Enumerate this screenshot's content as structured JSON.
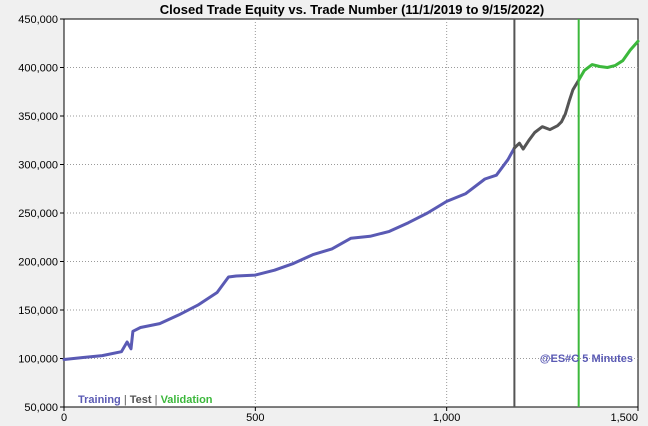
{
  "chart_data": {
    "type": "line",
    "title": "Closed Trade Equity vs. Trade Number (11/1/2019 to 9/15/2022)",
    "xlabel": "",
    "ylabel": "",
    "xlim": [
      0,
      1500
    ],
    "ylim": [
      50000,
      450000
    ],
    "x_ticks": [
      0,
      500,
      1000,
      1500
    ],
    "x_tick_labels": [
      "0",
      "500",
      "1,000",
      "1,500"
    ],
    "y_ticks": [
      50000,
      100000,
      150000,
      200000,
      250000,
      300000,
      350000,
      400000,
      450000
    ],
    "y_tick_labels": [
      "50,000",
      "100,000",
      "150,000",
      "200,000",
      "250,000",
      "300,000",
      "350,000",
      "400,000",
      "450,000"
    ],
    "grid": true,
    "legend_position": "bottom-left",
    "annotation": "@ES#C 5 Minutes",
    "boundaries": [
      {
        "name": "Test",
        "x": 1177,
        "color": "#555555"
      },
      {
        "name": "Validation",
        "x": 1345,
        "color": "#3cb83c"
      }
    ],
    "series": [
      {
        "name": "Training",
        "color": "#5a5ab4",
        "x": [
          0,
          50,
          100,
          150,
          165,
          175,
          180,
          200,
          250,
          300,
          350,
          400,
          430,
          450,
          500,
          550,
          600,
          650,
          700,
          750,
          800,
          850,
          900,
          950,
          1000,
          1050,
          1100,
          1130,
          1160,
          1177
        ],
        "y": [
          99000,
          101000,
          103000,
          107000,
          117000,
          110000,
          128000,
          132000,
          136000,
          145000,
          155000,
          168000,
          184000,
          185000,
          186000,
          191000,
          198000,
          207000,
          213000,
          224000,
          226000,
          231000,
          240000,
          250000,
          262000,
          270000,
          285000,
          289000,
          305000,
          317000
        ]
      },
      {
        "name": "Test",
        "color": "#555555",
        "x": [
          1177,
          1190,
          1200,
          1215,
          1230,
          1250,
          1270,
          1290,
          1300,
          1310,
          1320,
          1330,
          1345
        ],
        "y": [
          317000,
          322000,
          316000,
          325000,
          333000,
          339000,
          336000,
          340000,
          344000,
          352000,
          365000,
          377000,
          387000
        ]
      },
      {
        "name": "Validation",
        "color": "#3cb83c",
        "x": [
          1345,
          1360,
          1380,
          1400,
          1420,
          1440,
          1460,
          1480,
          1500
        ],
        "y": [
          387000,
          397000,
          403000,
          401000,
          400000,
          402000,
          407000,
          418000,
          427000
        ]
      }
    ]
  }
}
